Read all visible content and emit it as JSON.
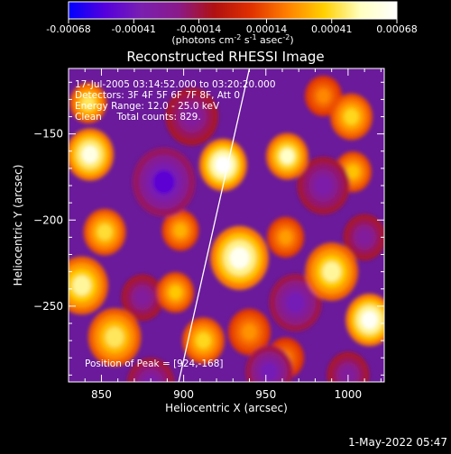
{
  "colorbar": {
    "ticks": [
      {
        "value": -0.00068,
        "label": "-0.00068"
      },
      {
        "value": -0.00041,
        "label": "-0.00041"
      },
      {
        "value": -0.00014,
        "label": "-0.00014"
      },
      {
        "value": 0.00014,
        "label": "0.00014"
      },
      {
        "value": 0.00041,
        "label": "0.00041"
      },
      {
        "value": 0.00068,
        "label": "0.00068"
      }
    ],
    "units": "(photons cm",
    "units_exp1": "-2",
    "units_mid": " s",
    "units_exp2": "-1",
    "units_mid2": " asec",
    "units_exp3": "-2",
    "units_end": ")",
    "stops": [
      "#0000ff",
      "#5500dd",
      "#7a1fb0",
      "#8a1a8a",
      "#b01010",
      "#e03000",
      "#ff8000",
      "#ffd000",
      "#ffffc0",
      "#ffffff"
    ]
  },
  "title": "Reconstructed RHESSI Image",
  "info": {
    "line1": "17-Jul-2005 03:14:52.000 to 03:20:20.000",
    "line2": "Detectors: 3F 4F 5F 6F 7F 8F, Att 0",
    "line3": "Energy Range: 12.0 - 25.0 keV",
    "line4": "Clean     Total counts: 829.",
    "peak": "Position of Peak = [924,-168]"
  },
  "footer_timestamp": "1-May-2022 05:47",
  "chart_data": {
    "type": "heatmap",
    "title": "Reconstructed RHESSI Image",
    "xlabel": "Heliocentric X (arcsec)",
    "ylabel": "Heliocentric Y (arcsec)",
    "xlim": [
      830,
      1022
    ],
    "ylim": [
      -294,
      -112
    ],
    "xticks": [
      850,
      900,
      950,
      1000
    ],
    "yticks": [
      -150,
      -200,
      -250
    ],
    "zlim": [
      -0.00068,
      0.00068
    ],
    "grid": false,
    "peak": [
      924,
      -168
    ],
    "limb_line": [
      [
        897,
        -294
      ],
      [
        940,
        -112
      ]
    ],
    "blobs": [
      {
        "x": 924,
        "y": -168,
        "r": 9,
        "v": 0.00068
      },
      {
        "x": 934,
        "y": -222,
        "r": 11,
        "v": 0.00065
      },
      {
        "x": 843,
        "y": -162,
        "r": 9,
        "v": 0.00062
      },
      {
        "x": 1013,
        "y": -258,
        "r": 9,
        "v": 0.00066
      },
      {
        "x": 963,
        "y": -163,
        "r": 8,
        "v": 0.00055
      },
      {
        "x": 838,
        "y": -238,
        "r": 10,
        "v": 0.0005
      },
      {
        "x": 858,
        "y": -268,
        "r": 10,
        "v": 0.00045
      },
      {
        "x": 852,
        "y": -207,
        "r": 8,
        "v": 0.00042
      },
      {
        "x": 842,
        "y": -132,
        "r": 7,
        "v": 0.00045
      },
      {
        "x": 990,
        "y": -230,
        "r": 10,
        "v": 0.0005
      },
      {
        "x": 1002,
        "y": -140,
        "r": 8,
        "v": 0.0004
      },
      {
        "x": 1003,
        "y": -172,
        "r": 7,
        "v": 0.00035
      },
      {
        "x": 898,
        "y": -206,
        "r": 7,
        "v": 0.00032
      },
      {
        "x": 895,
        "y": -242,
        "r": 7,
        "v": 0.00036
      },
      {
        "x": 912,
        "y": -270,
        "r": 8,
        "v": 0.0004
      },
      {
        "x": 940,
        "y": -265,
        "r": 8,
        "v": 0.00026
      },
      {
        "x": 962,
        "y": -210,
        "r": 7,
        "v": 0.00028
      },
      {
        "x": 985,
        "y": -128,
        "r": 7,
        "v": 0.00024
      },
      {
        "x": 962,
        "y": -280,
        "r": 7,
        "v": 0.00022
      },
      {
        "x": 888,
        "y": -178,
        "r": 12,
        "v": -0.0005
      },
      {
        "x": 968,
        "y": -248,
        "r": 10,
        "v": -0.0004
      },
      {
        "x": 952,
        "y": -288,
        "r": 9,
        "v": -0.0004
      },
      {
        "x": 985,
        "y": -180,
        "r": 10,
        "v": -0.00035
      },
      {
        "x": 905,
        "y": -140,
        "r": 10,
        "v": -0.0003
      },
      {
        "x": 880,
        "y": -295,
        "r": 9,
        "v": -0.00035
      },
      {
        "x": 1010,
        "y": -210,
        "r": 8,
        "v": -0.0003
      },
      {
        "x": 875,
        "y": -245,
        "r": 8,
        "v": -0.0003
      },
      {
        "x": 1000,
        "y": -290,
        "r": 8,
        "v": -0.0003
      }
    ]
  }
}
